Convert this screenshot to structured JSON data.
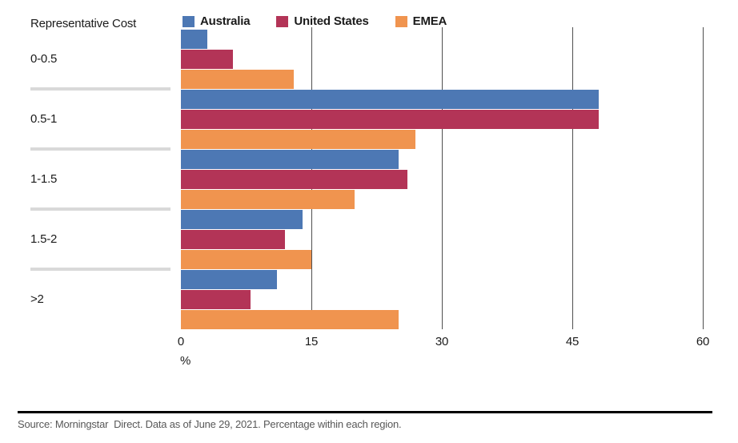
{
  "title": "Representative Cost",
  "chart_data": {
    "type": "bar",
    "orientation": "horizontal",
    "title": "Representative Cost",
    "categories": [
      "0-0.5",
      "0.5-1",
      "1-1.5",
      "1.5-2",
      ">2"
    ],
    "series": [
      {
        "name": "Australia",
        "color": "#4d78b4",
        "values": [
          3,
          48,
          25,
          14,
          11
        ]
      },
      {
        "name": "United States",
        "color": "#b33457",
        "values": [
          6,
          48,
          26,
          12,
          8
        ]
      },
      {
        "name": "EMEA",
        "color": "#f0944f",
        "values": [
          13,
          27,
          20,
          15,
          25
        ]
      }
    ],
    "xlabel": "%",
    "xlim": [
      0,
      60
    ],
    "xticks": [
      0,
      15,
      30,
      45,
      60
    ],
    "grid": "vertical-only",
    "gridline_ticks": [
      15,
      30,
      45,
      60
    ],
    "legend_position": "top"
  },
  "axis": {
    "tick_labels": [
      "0",
      "15",
      "30",
      "45",
      "60"
    ],
    "unit_label": "%"
  },
  "footer": {
    "source_text": "Source: Morningstar  Direct. Data as of June 29, 2021. Percentage within each region."
  },
  "colors": {
    "background": "#ffffff",
    "gridline": "#4f4f4f",
    "separator": "#d9d9d9",
    "text": "#1b1b1b",
    "source_text": "#585858",
    "footer_rule": "#000000",
    "australia": "#4d78b4",
    "united_states": "#b33457",
    "emea": "#f0944f"
  }
}
